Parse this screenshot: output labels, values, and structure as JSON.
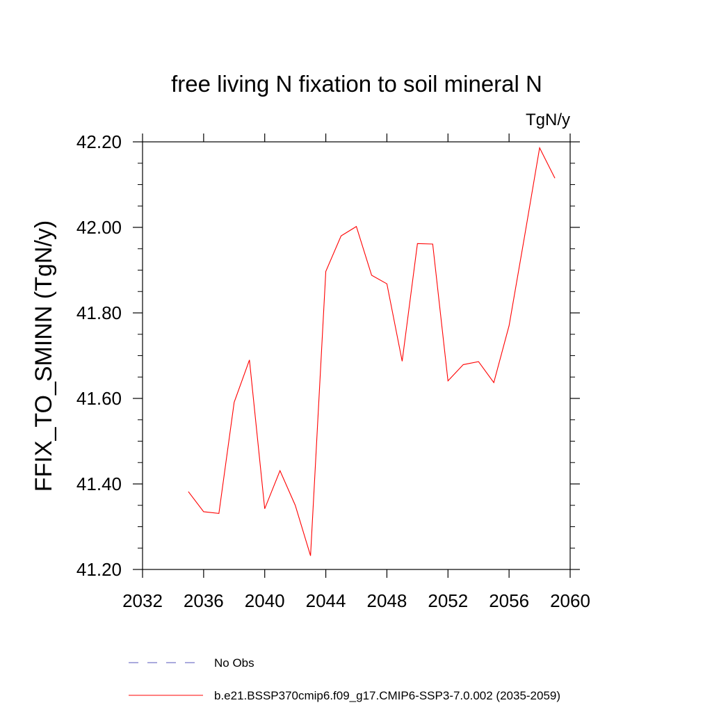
{
  "chart_data": {
    "type": "line",
    "title": "free living N fixation to soil mineral N",
    "units": "TgN/y",
    "ylabel": "FFIX_TO_SMINN  (TgN/y)",
    "xlabel": "",
    "xlim": [
      2032,
      2060
    ],
    "ylim": [
      41.2,
      42.2
    ],
    "xticks": [
      2032,
      2036,
      2040,
      2044,
      2048,
      2052,
      2056,
      2060
    ],
    "xtick_labels": [
      "2032",
      "2036",
      "2040",
      "2044",
      "2048",
      "2052",
      "2056",
      "2060"
    ],
    "yticks": [
      41.2,
      41.4,
      41.6,
      41.8,
      42.0,
      42.2
    ],
    "ytick_labels": [
      "41.20",
      "41.40",
      "41.60",
      "41.80",
      "42.00",
      "42.20"
    ],
    "grid": false,
    "series": [
      {
        "name": "b.e21.BSSP370cmip6.f09_g17.CMIP6-SSP3-7.0.002 (2035-2059)",
        "color": "#ff0000",
        "style": "solid",
        "x": [
          2035,
          2036,
          2037,
          2038,
          2039,
          2040,
          2041,
          2042,
          2043,
          2044,
          2045,
          2046,
          2047,
          2048,
          2049,
          2050,
          2051,
          2052,
          2053,
          2054,
          2055,
          2056,
          2057,
          2058,
          2059
        ],
        "values": [
          41.382,
          41.335,
          41.331,
          41.591,
          41.69,
          41.342,
          41.431,
          41.35,
          41.232,
          41.897,
          41.98,
          42.002,
          41.888,
          41.868,
          41.687,
          41.962,
          41.961,
          41.641,
          41.679,
          41.686,
          41.637,
          41.77,
          41.976,
          42.186,
          42.115
        ]
      }
    ],
    "legend": {
      "placement": "bottom",
      "entries": [
        {
          "label": "No Obs",
          "color": "#5555bb",
          "style": "dashed"
        },
        {
          "label": "b.e21.BSSP370cmip6.f09_g17.CMIP6-SSP3-7.0.002 (2035-2059)",
          "color": "#ff0000",
          "style": "solid"
        }
      ]
    }
  }
}
